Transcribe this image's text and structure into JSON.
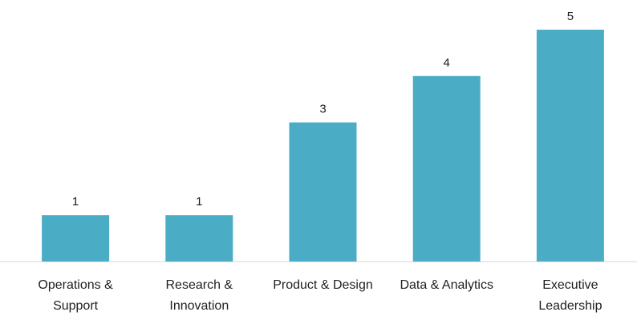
{
  "chart_data": {
    "type": "bar",
    "title": "",
    "xlabel": "",
    "ylabel": "",
    "categories": [
      [
        "Operations &",
        "Support"
      ],
      [
        "Research &",
        "Innovation"
      ],
      [
        "Product & Design"
      ],
      [
        "Data & Analytics"
      ],
      [
        "Executive",
        "Leadership"
      ]
    ],
    "values": [
      1,
      1,
      3,
      4,
      5
    ],
    "ylim": [
      0,
      5
    ],
    "grid": false,
    "legend": "none",
    "data_labels": true,
    "colors": {
      "bar": "#4BACC6",
      "axis": "#D9D9D9",
      "text": "#1F1F1F"
    }
  }
}
